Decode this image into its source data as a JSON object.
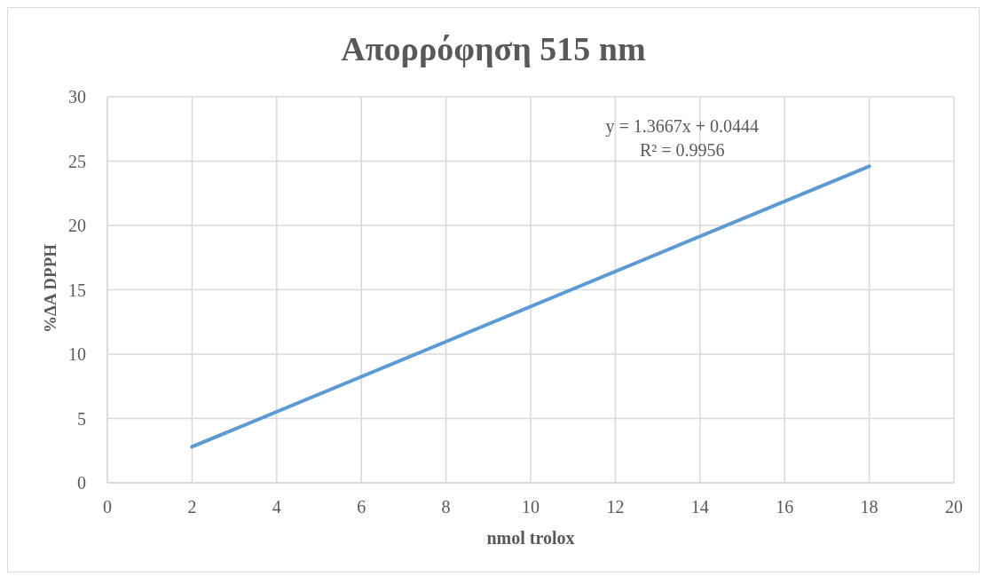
{
  "chart_data": {
    "type": "line",
    "title": "Απορρόφηση 515 nm",
    "xlabel": "nmol trolox",
    "ylabel": "%ΔA DPPH",
    "x": [
      2,
      18
    ],
    "values": [
      2.8,
      24.6
    ],
    "color": "#5b9bd5",
    "xlim": [
      0,
      20
    ],
    "xticks": [
      0,
      2,
      4,
      6,
      8,
      10,
      12,
      14,
      16,
      18,
      20
    ],
    "ylim": [
      0,
      30
    ],
    "yticks": [
      0,
      5,
      10,
      15,
      20,
      25,
      30
    ],
    "grid": true,
    "annotations": [
      "y = 1.3667x + 0.0444",
      "R² = 0.9956"
    ]
  }
}
